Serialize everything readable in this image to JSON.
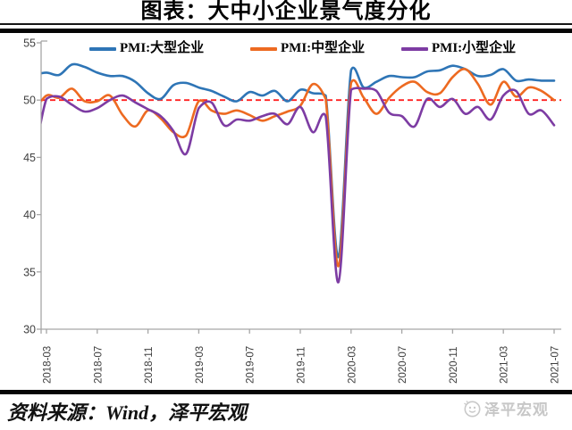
{
  "title": "图表：大中小企业景气度分化",
  "footer": {
    "source": "资料来源：Wind，泽平宏观",
    "watermark": "泽平宏观"
  },
  "chart_data": {
    "type": "line",
    "smooth": true,
    "grid": false,
    "legend_position": "top",
    "xlabel": "",
    "ylabel": "",
    "ylim": [
      30,
      55
    ],
    "yticks": [
      55,
      50,
      45,
      40,
      35,
      30
    ],
    "xtick_labels": [
      "2018-03",
      "2018-07",
      "2018-11",
      "2019-03",
      "2019-07",
      "2019-11",
      "2020-03",
      "2020-07",
      "2020-11",
      "2021-03",
      "2021-07"
    ],
    "reference_line": {
      "value": 50,
      "color": "#ff2020",
      "style": "dashed"
    },
    "axis_color": "#a6a6a6",
    "tick_text_color": "#3f3f3f",
    "x": [
      "2018-02",
      "2018-03",
      "2018-04",
      "2018-05",
      "2018-06",
      "2018-07",
      "2018-08",
      "2018-09",
      "2018-10",
      "2018-11",
      "2018-12",
      "2019-01",
      "2019-02",
      "2019-03",
      "2019-04",
      "2019-05",
      "2019-06",
      "2019-07",
      "2019-08",
      "2019-09",
      "2019-10",
      "2019-11",
      "2019-12",
      "2020-01",
      "2020-02",
      "2020-03",
      "2020-04",
      "2020-05",
      "2020-06",
      "2020-07",
      "2020-08",
      "2020-09",
      "2020-10",
      "2020-11",
      "2020-12",
      "2021-01",
      "2021-02",
      "2021-03",
      "2021-04",
      "2021-05",
      "2021-06",
      "2021-07"
    ],
    "series": [
      {
        "name": "PMI:大型企业",
        "color": "#2e75b6",
        "values": [
          52.2,
          52.4,
          52.2,
          53.1,
          52.9,
          52.4,
          52.1,
          52.1,
          51.6,
          50.6,
          50.1,
          51.3,
          51.5,
          51.1,
          50.8,
          50.3,
          49.9,
          50.7,
          50.4,
          50.8,
          49.9,
          50.9,
          50.6,
          50.4,
          36.3,
          52.6,
          51.1,
          51.6,
          52.1,
          52.0,
          52.0,
          52.5,
          52.6,
          53.0,
          52.7,
          52.1,
          52.2,
          52.7,
          51.7,
          51.8,
          51.7,
          51.7
        ]
      },
      {
        "name": "PMI:中型企业",
        "color": "#ed6a21",
        "values": [
          49.0,
          50.4,
          50.2,
          51.0,
          49.9,
          49.9,
          50.4,
          48.7,
          47.7,
          49.1,
          48.4,
          47.2,
          46.9,
          49.9,
          49.1,
          48.8,
          49.1,
          48.7,
          48.2,
          48.6,
          49.0,
          49.5,
          51.4,
          50.1,
          35.5,
          51.5,
          50.2,
          48.8,
          50.2,
          51.2,
          51.6,
          50.7,
          50.6,
          52.0,
          52.7,
          51.4,
          49.6,
          51.6,
          50.3,
          51.1,
          50.8,
          50.0
        ]
      },
      {
        "name": "PMI:小型企业",
        "color": "#7d3ca3",
        "values": [
          44.8,
          50.1,
          50.3,
          49.6,
          49.0,
          49.3,
          50.0,
          50.4,
          49.8,
          49.2,
          48.6,
          47.3,
          45.3,
          49.3,
          49.8,
          47.8,
          48.3,
          48.2,
          48.6,
          48.8,
          47.9,
          49.4,
          47.2,
          48.6,
          34.1,
          50.9,
          51.0,
          50.8,
          48.9,
          48.6,
          47.7,
          50.1,
          49.4,
          50.1,
          48.8,
          49.4,
          48.3,
          50.4,
          50.8,
          48.8,
          49.1,
          47.8
        ]
      }
    ]
  }
}
